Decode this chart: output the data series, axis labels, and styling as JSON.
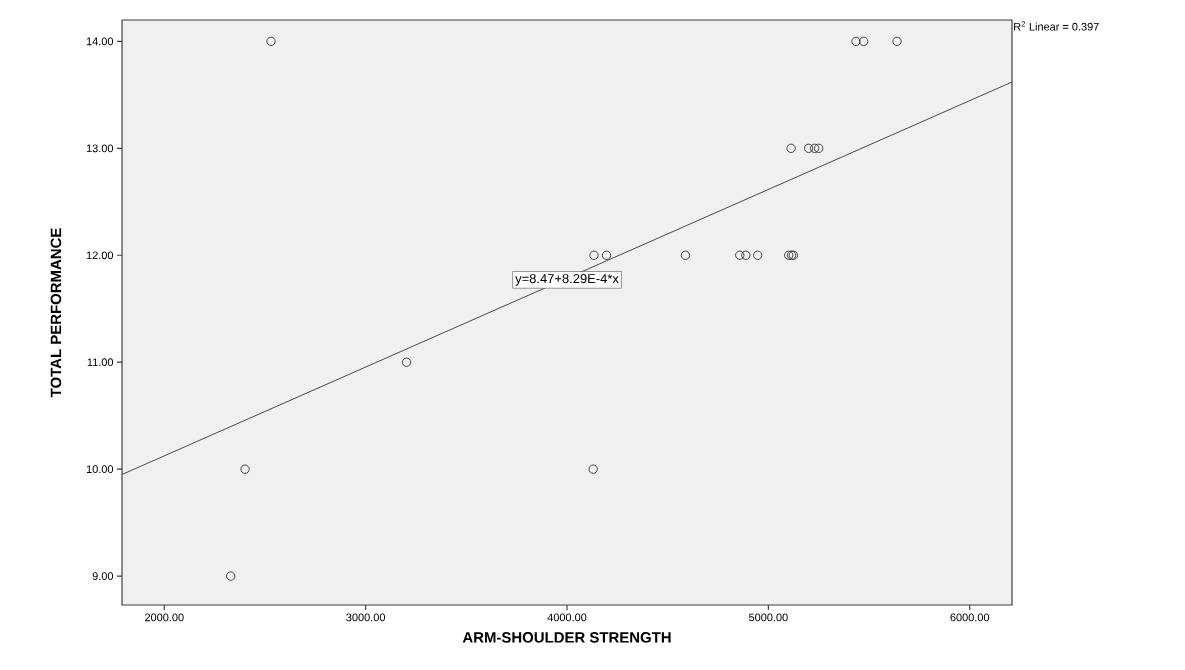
{
  "chart_data": {
    "type": "scatter",
    "xlabel": "ARM-SHOULDER STRENGTH",
    "ylabel": "TOTAL PERFORMANCE",
    "series": [
      {
        "marker": "circle",
        "color": "#333333",
        "x": [
          2530,
          5435,
          5473,
          5639,
          5113,
          5200,
          5230,
          5250,
          4134,
          4196,
          4588,
          4858,
          4888,
          4947,
          5101,
          5115,
          5124,
          3203,
          2401,
          4130,
          2330
        ],
        "values": [
          14,
          14,
          14,
          14,
          13,
          13,
          13,
          13,
          12,
          12,
          12,
          12,
          12,
          12,
          12,
          12,
          12,
          11,
          10,
          10,
          9
        ]
      },
      {
        "type": "line",
        "color": "#333333",
        "x": [
          1790,
          6210
        ],
        "values": [
          9.95,
          13.62
        ]
      }
    ],
    "xlim": [
      1790,
      6210
    ],
    "ylim": [
      8.73,
      14.2
    ],
    "xticks": [
      {
        "value": 2000,
        "label": "2000.00"
      },
      {
        "value": 3000,
        "label": "3000.00"
      },
      {
        "value": 4000,
        "label": "4000.00"
      },
      {
        "value": 5000,
        "label": "5000.00"
      },
      {
        "value": 6000,
        "label": "6000.00"
      }
    ],
    "yticks": [
      {
        "value": 9,
        "label": "9.00"
      },
      {
        "value": 10,
        "label": "10.00"
      },
      {
        "value": 11,
        "label": "11.00"
      },
      {
        "value": 12,
        "label": "12.00"
      },
      {
        "value": 13,
        "label": "13.00"
      },
      {
        "value": 14,
        "label": "14.00"
      }
    ],
    "annotations": [
      {
        "text": "y=8.47+8.29E-4*x",
        "x": 4000,
        "y": 11.77
      },
      "R$^{2}$ Linear = 0.397"
    ],
    "grid": false
  }
}
